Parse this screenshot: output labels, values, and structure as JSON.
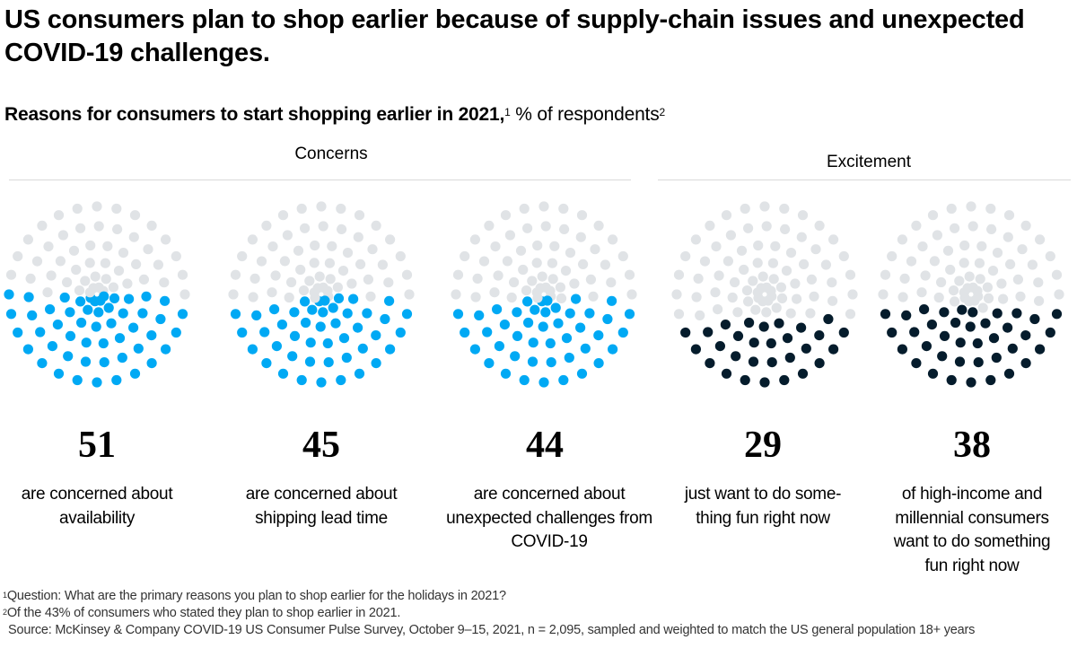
{
  "title": "US consumers plan to shop earlier because of supply-chain issues and unexpected COVID-19 challenges.",
  "subtitle": {
    "bold": "Reasons for consumers to start shopping earlier in 2021,",
    "sup1": "1",
    "regular": " % of respondents",
    "sup2": "2"
  },
  "colors": {
    "concerns": "#00a9f4",
    "excitement": "#051c2c",
    "empty": "#e0e3e6",
    "rule": "#d9d9d9"
  },
  "chart_data": {
    "type": "dot-matrix",
    "title": "Reasons for consumers to start shopping earlier in 2021",
    "unit": "% of respondents",
    "dots_per_chart": 100,
    "groups": [
      {
        "name": "Concerns",
        "indices": [
          0,
          1,
          2
        ]
      },
      {
        "name": "Excitement",
        "indices": [
          3,
          4
        ]
      }
    ],
    "items": [
      {
        "group": "Concerns",
        "value": 51,
        "label": "are concerned about availability"
      },
      {
        "group": "Concerns",
        "value": 45,
        "label": "are concerned about shipping lead time"
      },
      {
        "group": "Concerns",
        "value": 44,
        "label": "are concerned about unexpected challenges from COVID-19"
      },
      {
        "group": "Excitement",
        "value": 29,
        "label": "just want to do some-thing fun right now"
      },
      {
        "group": "Excitement",
        "value": 38,
        "label": "of high-income and millennial consumers want to do something fun right now"
      }
    ]
  },
  "groups": {
    "concerns": "Concerns",
    "excitement": "Excitement"
  },
  "items": [
    {
      "value": "51",
      "desc": "are concerned about availability"
    },
    {
      "value": "45",
      "desc": "are concerned about shipping lead time"
    },
    {
      "value": "44",
      "desc": "are concerned about unexpected challenges from COVID-19"
    },
    {
      "value": "29",
      "desc": "just want to do some-thing fun right now"
    },
    {
      "value": "38",
      "desc": "of high-income and millennial consumers want to do something fun right now"
    }
  ],
  "footnotes": {
    "note1_marker": "1",
    "note1": "Question: What are the primary reasons you plan to shop earlier for the holidays in 2021?",
    "note2_marker": "2",
    "note2": "Of the 43% of consumers who stated they plan to shop earlier in 2021.",
    "source": "Source: McKinsey & Company COVID-19 US Consumer Pulse Survey, October 9–15, 2021, n = 2,095, sampled and weighted to match the US general population 18+ years"
  }
}
